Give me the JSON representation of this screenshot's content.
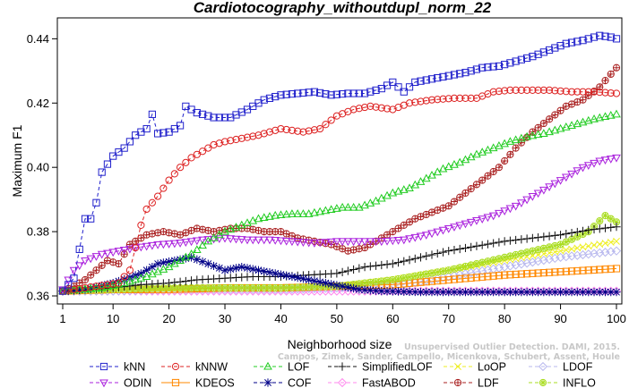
{
  "chart_data": {
    "type": "line",
    "title": "Cardiotocography_withoutdupl_norm_22",
    "xlabel": "Neighborhood size",
    "ylabel": "Maximum F1",
    "xlim": [
      1,
      100
    ],
    "ylim": [
      0.3575,
      0.4465
    ],
    "x_ticks": [
      1,
      10,
      20,
      30,
      40,
      50,
      60,
      70,
      80,
      90,
      100
    ],
    "y_ticks": [
      0.36,
      0.38,
      0.4,
      0.42,
      0.44
    ],
    "y_tick_labels": [
      "0.36",
      "0.38",
      "0.40",
      "0.42",
      "0.44"
    ],
    "grid": false,
    "legend_position": "bottom",
    "watermark": [
      "Campos, Zimek, Sander, Campello, Micenkova, Schubert, Assent, Houle",
      "Unsupervised Outlier Detection. DAMI, 2015."
    ],
    "series": [
      {
        "name": "kNN",
        "color": "#2222cc",
        "marker": "square",
        "dash": "4,3",
        "points": [
          [
            1,
            0.3615
          ],
          [
            2,
            0.3635
          ],
          [
            3,
            0.3655
          ],
          [
            4,
            0.3745
          ],
          [
            5,
            0.384
          ],
          [
            6,
            0.384
          ],
          [
            7,
            0.389
          ],
          [
            8,
            0.3985
          ],
          [
            9,
            0.401
          ],
          [
            10,
            0.4035
          ],
          [
            12,
            0.406
          ],
          [
            14,
            0.41
          ],
          [
            16,
            0.412
          ],
          [
            17,
            0.4165
          ],
          [
            18,
            0.4105
          ],
          [
            20,
            0.411
          ],
          [
            22,
            0.413
          ],
          [
            23,
            0.419
          ],
          [
            25,
            0.417
          ],
          [
            28,
            0.4155
          ],
          [
            31,
            0.4155
          ],
          [
            34,
            0.418
          ],
          [
            37,
            0.421
          ],
          [
            40,
            0.4225
          ],
          [
            43,
            0.423
          ],
          [
            46,
            0.4235
          ],
          [
            49,
            0.4225
          ],
          [
            52,
            0.423
          ],
          [
            55,
            0.423
          ],
          [
            58,
            0.4245
          ],
          [
            60,
            0.4265
          ],
          [
            62,
            0.4235
          ],
          [
            64,
            0.4265
          ],
          [
            67,
            0.4275
          ],
          [
            70,
            0.4285
          ],
          [
            73,
            0.4295
          ],
          [
            76,
            0.431
          ],
          [
            79,
            0.4315
          ],
          [
            82,
            0.433
          ],
          [
            85,
            0.4345
          ],
          [
            88,
            0.4365
          ],
          [
            91,
            0.4385
          ],
          [
            94,
            0.4395
          ],
          [
            97,
            0.441
          ],
          [
            99,
            0.4405
          ],
          [
            100,
            0.44
          ]
        ]
      },
      {
        "name": "kNNW",
        "color": "#dd2222",
        "marker": "circle",
        "dash": "4,3",
        "points": [
          [
            1,
            0.3615
          ],
          [
            3,
            0.362
          ],
          [
            5,
            0.3625
          ],
          [
            7,
            0.363
          ],
          [
            9,
            0.3635
          ],
          [
            11,
            0.364
          ],
          [
            13,
            0.368
          ],
          [
            14,
            0.375
          ],
          [
            15,
            0.382
          ],
          [
            16,
            0.387
          ],
          [
            18,
            0.391
          ],
          [
            20,
            0.396
          ],
          [
            22,
            0.4
          ],
          [
            24,
            0.403
          ],
          [
            26,
            0.405
          ],
          [
            28,
            0.407
          ],
          [
            30,
            0.408
          ],
          [
            33,
            0.409
          ],
          [
            36,
            0.41
          ],
          [
            40,
            0.412
          ],
          [
            44,
            0.411
          ],
          [
            47,
            0.412
          ],
          [
            50,
            0.416
          ],
          [
            53,
            0.418
          ],
          [
            56,
            0.419
          ],
          [
            60,
            0.418
          ],
          [
            63,
            0.42
          ],
          [
            67,
            0.421
          ],
          [
            71,
            0.4215
          ],
          [
            75,
            0.4215
          ],
          [
            78,
            0.4235
          ],
          [
            81,
            0.424
          ],
          [
            85,
            0.424
          ],
          [
            88,
            0.424
          ],
          [
            92,
            0.4235
          ],
          [
            96,
            0.4235
          ],
          [
            100,
            0.423
          ]
        ]
      },
      {
        "name": "LOF",
        "color": "#22cc22",
        "marker": "triangle-up",
        "dash": "4,3",
        "points": [
          [
            1,
            0.3615
          ],
          [
            4,
            0.362
          ],
          [
            8,
            0.3625
          ],
          [
            12,
            0.364
          ],
          [
            16,
            0.366
          ],
          [
            20,
            0.369
          ],
          [
            24,
            0.373
          ],
          [
            27,
            0.377
          ],
          [
            30,
            0.38
          ],
          [
            33,
            0.382
          ],
          [
            36,
            0.384
          ],
          [
            39,
            0.385
          ],
          [
            42,
            0.3855
          ],
          [
            45,
            0.3855
          ],
          [
            48,
            0.3865
          ],
          [
            51,
            0.3875
          ],
          [
            54,
            0.3875
          ],
          [
            57,
            0.3895
          ],
          [
            60,
            0.392
          ],
          [
            63,
            0.3935
          ],
          [
            66,
            0.3965
          ],
          [
            69,
            0.3995
          ],
          [
            72,
            0.4015
          ],
          [
            75,
            0.404
          ],
          [
            78,
            0.406
          ],
          [
            81,
            0.408
          ],
          [
            84,
            0.4095
          ],
          [
            87,
            0.4105
          ],
          [
            90,
            0.412
          ],
          [
            93,
            0.4135
          ],
          [
            96,
            0.415
          ],
          [
            100,
            0.4165
          ]
        ]
      },
      {
        "name": "SimplifiedLOF",
        "color": "#111111",
        "marker": "plus",
        "dash": "4,3",
        "points": [
          [
            1,
            0.3615
          ],
          [
            5,
            0.362
          ],
          [
            10,
            0.3625
          ],
          [
            15,
            0.3635
          ],
          [
            20,
            0.364
          ],
          [
            25,
            0.365
          ],
          [
            30,
            0.3655
          ],
          [
            35,
            0.366
          ],
          [
            40,
            0.366
          ],
          [
            45,
            0.3665
          ],
          [
            50,
            0.367
          ],
          [
            55,
            0.369
          ],
          [
            60,
            0.37
          ],
          [
            65,
            0.372
          ],
          [
            70,
            0.374
          ],
          [
            75,
            0.3755
          ],
          [
            80,
            0.377
          ],
          [
            85,
            0.378
          ],
          [
            90,
            0.379
          ],
          [
            95,
            0.3805
          ],
          [
            100,
            0.3815
          ]
        ]
      },
      {
        "name": "LoOP",
        "color": "#eeee22",
        "marker": "cross",
        "dash": "4,3",
        "points": [
          [
            1,
            0.3615
          ],
          [
            10,
            0.362
          ],
          [
            20,
            0.362
          ],
          [
            30,
            0.3625
          ],
          [
            40,
            0.3625
          ],
          [
            50,
            0.363
          ],
          [
            60,
            0.365
          ],
          [
            70,
            0.368
          ],
          [
            80,
            0.371
          ],
          [
            90,
            0.374
          ],
          [
            100,
            0.377
          ]
        ]
      },
      {
        "name": "LDOF",
        "color": "#b8b8ee",
        "marker": "diamond",
        "dash": "4,3",
        "points": [
          [
            1,
            0.3615
          ],
          [
            10,
            0.3615
          ],
          [
            20,
            0.362
          ],
          [
            30,
            0.362
          ],
          [
            40,
            0.362
          ],
          [
            50,
            0.3625
          ],
          [
            60,
            0.363
          ],
          [
            70,
            0.366
          ],
          [
            80,
            0.369
          ],
          [
            90,
            0.372
          ],
          [
            100,
            0.374
          ]
        ]
      },
      {
        "name": "ODIN",
        "color": "#aa22dd",
        "marker": "triangle-down",
        "dash": "4,3",
        "points": [
          [
            1,
            0.362
          ],
          [
            3,
            0.368
          ],
          [
            5,
            0.371
          ],
          [
            8,
            0.373
          ],
          [
            11,
            0.374
          ],
          [
            14,
            0.375
          ],
          [
            18,
            0.376
          ],
          [
            22,
            0.3765
          ],
          [
            26,
            0.3775
          ],
          [
            30,
            0.378
          ],
          [
            34,
            0.3775
          ],
          [
            38,
            0.3775
          ],
          [
            42,
            0.377
          ],
          [
            46,
            0.3765
          ],
          [
            50,
            0.377
          ],
          [
            54,
            0.377
          ],
          [
            58,
            0.377
          ],
          [
            62,
            0.3775
          ],
          [
            66,
            0.379
          ],
          [
            70,
            0.381
          ],
          [
            74,
            0.383
          ],
          [
            78,
            0.385
          ],
          [
            82,
            0.388
          ],
          [
            86,
            0.392
          ],
          [
            90,
            0.396
          ],
          [
            94,
            0.4
          ],
          [
            97,
            0.402
          ],
          [
            100,
            0.403
          ]
        ]
      },
      {
        "name": "KDEOS",
        "color": "#ff8800",
        "marker": "square",
        "dash": "",
        "points": [
          [
            1,
            0.3615
          ],
          [
            10,
            0.362
          ],
          [
            20,
            0.362
          ],
          [
            30,
            0.3625
          ],
          [
            40,
            0.3625
          ],
          [
            50,
            0.363
          ],
          [
            60,
            0.3635
          ],
          [
            70,
            0.365
          ],
          [
            80,
            0.3665
          ],
          [
            90,
            0.3675
          ],
          [
            100,
            0.3685
          ]
        ]
      },
      {
        "name": "COF",
        "color": "#000088",
        "marker": "asterisk",
        "dash": "4,3",
        "points": [
          [
            1,
            0.3615
          ],
          [
            5,
            0.362
          ],
          [
            10,
            0.364
          ],
          [
            15,
            0.367
          ],
          [
            18,
            0.37
          ],
          [
            21,
            0.371
          ],
          [
            24,
            0.372
          ],
          [
            27,
            0.37
          ],
          [
            30,
            0.368
          ],
          [
            33,
            0.369
          ],
          [
            36,
            0.368
          ],
          [
            39,
            0.367
          ],
          [
            42,
            0.366
          ],
          [
            45,
            0.365
          ],
          [
            48,
            0.364
          ],
          [
            51,
            0.363
          ],
          [
            54,
            0.362
          ],
          [
            58,
            0.3615
          ],
          [
            65,
            0.3612
          ],
          [
            75,
            0.3612
          ],
          [
            85,
            0.3612
          ],
          [
            100,
            0.3612
          ]
        ]
      },
      {
        "name": "FastABOD",
        "color": "#ff88ee",
        "marker": "diamond",
        "dash": "4,3",
        "points": [
          [
            1,
            0.3615
          ],
          [
            20,
            0.3615
          ],
          [
            40,
            0.3615
          ],
          [
            60,
            0.3615
          ],
          [
            80,
            0.3615
          ],
          [
            100,
            0.3615
          ]
        ]
      },
      {
        "name": "LDF",
        "color": "#aa2222",
        "marker": "circle-plus",
        "dash": "4,3",
        "points": [
          [
            1,
            0.3615
          ],
          [
            3,
            0.363
          ],
          [
            5,
            0.365
          ],
          [
            7,
            0.368
          ],
          [
            9,
            0.371
          ],
          [
            11,
            0.37
          ],
          [
            13,
            0.376
          ],
          [
            16,
            0.379
          ],
          [
            19,
            0.38
          ],
          [
            22,
            0.379
          ],
          [
            25,
            0.381
          ],
          [
            28,
            0.38
          ],
          [
            31,
            0.381
          ],
          [
            34,
            0.381
          ],
          [
            37,
            0.38
          ],
          [
            40,
            0.38
          ],
          [
            43,
            0.378
          ],
          [
            46,
            0.377
          ],
          [
            49,
            0.376
          ],
          [
            52,
            0.374
          ],
          [
            55,
            0.375
          ],
          [
            58,
            0.378
          ],
          [
            61,
            0.381
          ],
          [
            64,
            0.384
          ],
          [
            67,
            0.386
          ],
          [
            70,
            0.388
          ],
          [
            73,
            0.392
          ],
          [
            76,
            0.396
          ],
          [
            79,
            0.4
          ],
          [
            82,
            0.406
          ],
          [
            85,
            0.411
          ],
          [
            88,
            0.415
          ],
          [
            91,
            0.419
          ],
          [
            94,
            0.421
          ],
          [
            97,
            0.425
          ],
          [
            99,
            0.429
          ],
          [
            100,
            0.431
          ]
        ]
      },
      {
        "name": "INFLO",
        "color": "#aadd22",
        "marker": "circle-asterisk",
        "dash": "4,3",
        "points": [
          [
            1,
            0.3615
          ],
          [
            10,
            0.362
          ],
          [
            20,
            0.3625
          ],
          [
            30,
            0.3625
          ],
          [
            40,
            0.3625
          ],
          [
            50,
            0.363
          ],
          [
            60,
            0.365
          ],
          [
            70,
            0.368
          ],
          [
            80,
            0.372
          ],
          [
            90,
            0.376
          ],
          [
            95,
            0.38
          ],
          [
            98,
            0.385
          ],
          [
            100,
            0.383
          ]
        ]
      }
    ]
  }
}
